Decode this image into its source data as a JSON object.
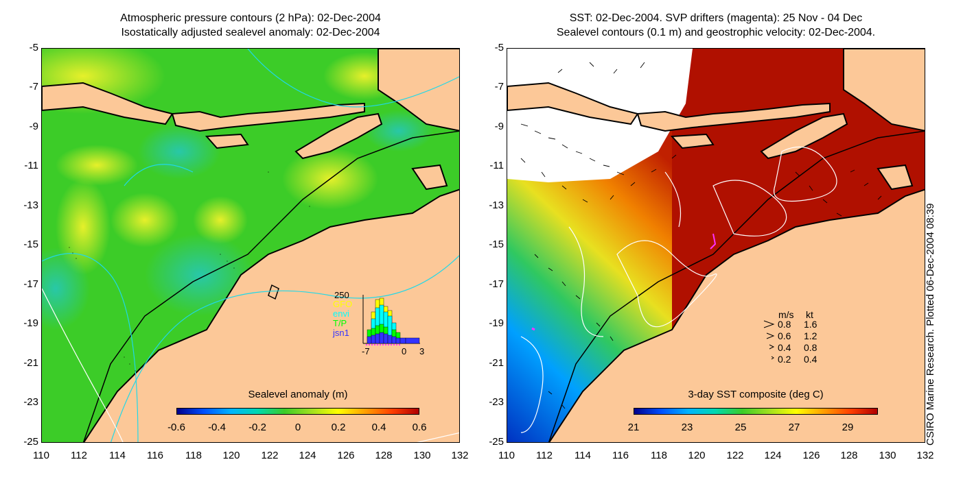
{
  "left_panel": {
    "title_line1": "Atmospheric pressure contours (2 hPa): 02-Dec-2004",
    "title_line2": "Isostatically adjusted sealevel anomaly: 02-Dec-2004",
    "colorbar_title": "Sealevel anomaly (m)",
    "colorbar_ticks": [
      "-0.6",
      "-0.4",
      "-0.2",
      "0",
      "0.2",
      "0.4",
      "0.6"
    ],
    "inset": {
      "ymax": "250",
      "xticks": [
        "-7",
        "0",
        "3"
      ],
      "legend": [
        {
          "name": "GFO",
          "color": "#ffff00"
        },
        {
          "name": "envi",
          "color": "#00ffff"
        },
        {
          "name": "T/P",
          "color": "#00ff00"
        },
        {
          "name": "jsn1",
          "color": "#3333ff"
        }
      ]
    }
  },
  "right_panel": {
    "title_line1": "SST: 02-Dec-2004. SVP drifters (magenta): 25 Nov - 04 Dec",
    "title_line2": "Sealevel contours (0.1 m) and geostrophic velocity: 02-Dec-2004.",
    "colorbar_title": "3-day SST composite (deg C)",
    "colorbar_ticks": [
      "21",
      "23",
      "25",
      "27",
      "29"
    ],
    "velocity_legend": {
      "header_ms": "m/s",
      "header_kt": "kt",
      "rows": [
        {
          "ms": "0.8",
          "kt": "1.6"
        },
        {
          "ms": "0.6",
          "kt": "1.2"
        },
        {
          "ms": "0.4",
          "kt": "0.8"
        },
        {
          "ms": "0.2",
          "kt": "0.4"
        }
      ]
    }
  },
  "axes": {
    "y_ticks": [
      "-5",
      "-7",
      "-9",
      "-11",
      "-13",
      "-15",
      "-17",
      "-19",
      "-21",
      "-23",
      "-25"
    ],
    "x_ticks": [
      "110",
      "112",
      "114",
      "116",
      "118",
      "120",
      "122",
      "124",
      "126",
      "128",
      "130",
      "132"
    ]
  },
  "credit": "CSIRO Marine Research. Plotted 06-Dec-2004 08:39",
  "colors": {
    "land": "#fcc898",
    "sea_green": "#3ccc28",
    "sst_red": "#b01000"
  }
}
